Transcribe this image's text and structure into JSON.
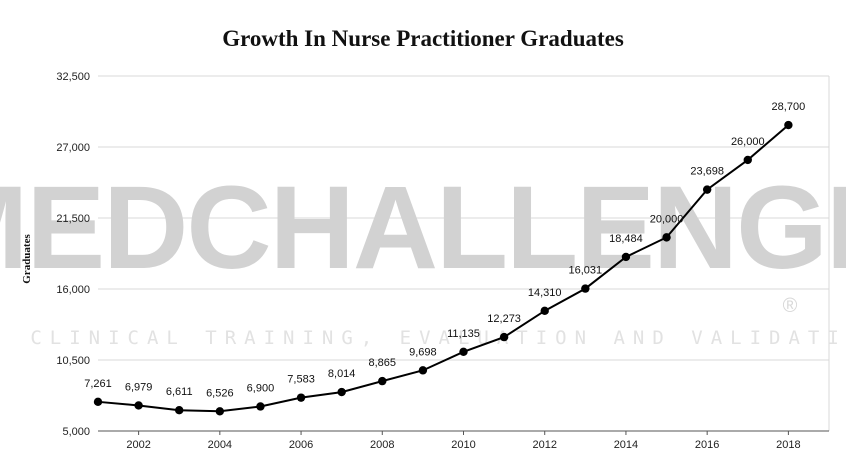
{
  "watermark": {
    "brand": "MEDCHALLENGER",
    "tagline": "CLINICAL TRAINING, EVALUATION AND VALIDATION",
    "registered": "®"
  },
  "chart_data": {
    "type": "line",
    "title": "Growth In Nurse Practitioner Graduates",
    "xlabel": "",
    "ylabel": "Graduates",
    "x": [
      2001,
      2002,
      2003,
      2004,
      2005,
      2006,
      2007,
      2008,
      2009,
      2010,
      2011,
      2012,
      2013,
      2014,
      2015,
      2016,
      2017,
      2018
    ],
    "values": [
      7261,
      6979,
      6611,
      6526,
      6900,
      7583,
      8014,
      8865,
      9698,
      11135,
      12273,
      14310,
      16031,
      18484,
      20000,
      23698,
      26000,
      28700
    ],
    "data_labels": [
      "7,261",
      "6,979",
      "6,611",
      "6,526",
      "6,900",
      "7,583",
      "8,014",
      "8,865",
      "9,698",
      "11,135",
      "12,273",
      "14,310",
      "16,031",
      "18,484",
      "20,000",
      "23,698",
      "26,000",
      "28,700"
    ],
    "ylim": [
      5000,
      32500
    ],
    "xlim": [
      2001,
      2019
    ],
    "y_ticks": [
      5000,
      10500,
      16000,
      21500,
      27000,
      32500
    ],
    "y_tick_labels": [
      "5,000",
      "10,500",
      "16,000",
      "21,500",
      "27,000",
      "32,500"
    ],
    "x_ticks": [
      2002,
      2004,
      2006,
      2008,
      2010,
      2012,
      2014,
      2016,
      2018
    ],
    "x_tick_labels": [
      "2002",
      "2004",
      "2006",
      "2008",
      "2010",
      "2012",
      "2014",
      "2016",
      "2018"
    ],
    "grid": true,
    "legend": "none",
    "line_color": "#000000"
  }
}
